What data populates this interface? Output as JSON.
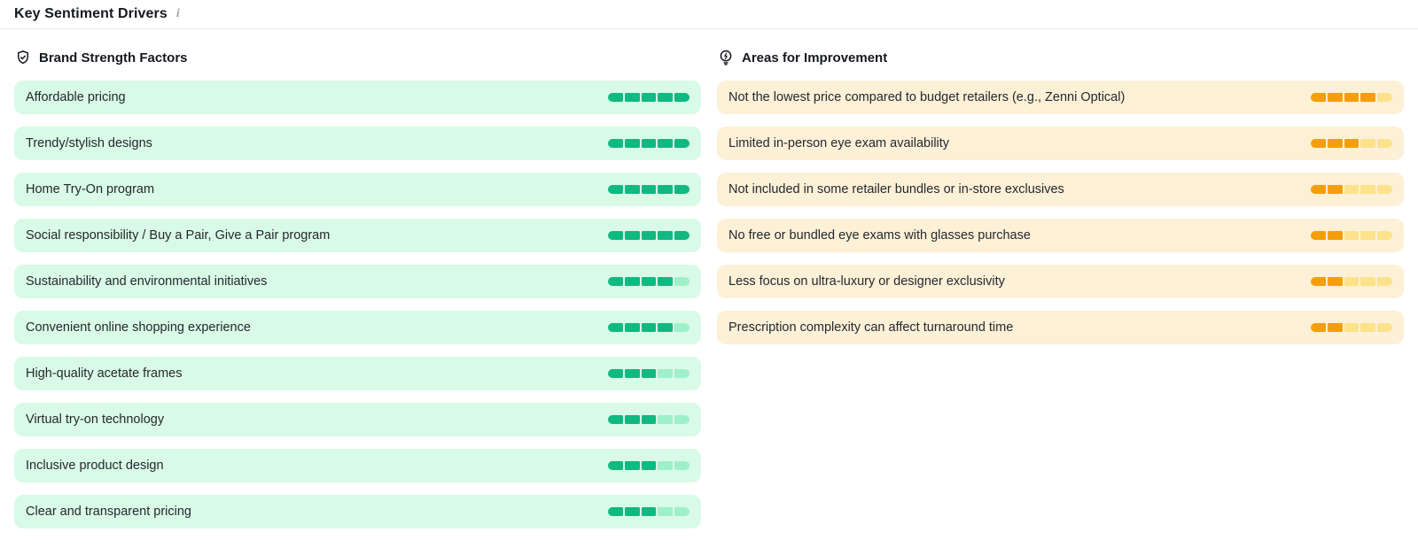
{
  "header": {
    "title": "Key Sentiment Drivers",
    "info_icon": "i"
  },
  "colors": {
    "divider": "#e7e9ee",
    "title_text": "#15181e",
    "row_text": "#25282e",
    "info_icon_gray": "#9ca3af",
    "strength_row_bg": "#d9fae6",
    "strength_filled": "#10b981",
    "strength_unfilled": "#9df0ca",
    "improvement_row_bg": "#fcf0d7",
    "improvement_filled": "#f59e0b",
    "improvement_unfilled": "#fce38b"
  },
  "sections": [
    {
      "id": "brand-strength-factors",
      "icon": "shield-check-icon",
      "label": "Brand Strength Factors",
      "row_bg": "#d9fae6",
      "filled": "#10b981",
      "unfilled": "#9df0ca",
      "max_segments": 5,
      "items": [
        {
          "label": "Affordable pricing",
          "score": 5
        },
        {
          "label": "Trendy/stylish designs",
          "score": 5
        },
        {
          "label": "Home Try-On program",
          "score": 5
        },
        {
          "label": "Social responsibility / Buy a Pair, Give a Pair program",
          "score": 5
        },
        {
          "label": "Sustainability and environmental initiatives",
          "score": 4
        },
        {
          "label": "Convenient online shopping experience",
          "score": 4
        },
        {
          "label": "High-quality acetate frames",
          "score": 3
        },
        {
          "label": "Virtual try-on technology",
          "score": 3
        },
        {
          "label": "Inclusive product design",
          "score": 3
        },
        {
          "label": "Clear and transparent pricing",
          "score": 3
        }
      ]
    },
    {
      "id": "areas-for-improvement",
      "icon": "lightbulb-icon",
      "label": "Areas for Improvement",
      "row_bg": "#fcf0d7",
      "filled": "#f59e0b",
      "unfilled": "#fce38b",
      "max_segments": 5,
      "items": [
        {
          "label": "Not the lowest price compared to budget retailers (e.g., Zenni Optical)",
          "score": 4
        },
        {
          "label": "Limited in-person eye exam availability",
          "score": 3
        },
        {
          "label": "Not included in some retailer bundles or in-store exclusives",
          "score": 2
        },
        {
          "label": "No free or bundled eye exams with glasses purchase",
          "score": 2
        },
        {
          "label": "Less focus on ultra-luxury or designer exclusivity",
          "score": 2
        },
        {
          "label": "Prescription complexity can affect turnaround time",
          "score": 2
        }
      ]
    }
  ]
}
